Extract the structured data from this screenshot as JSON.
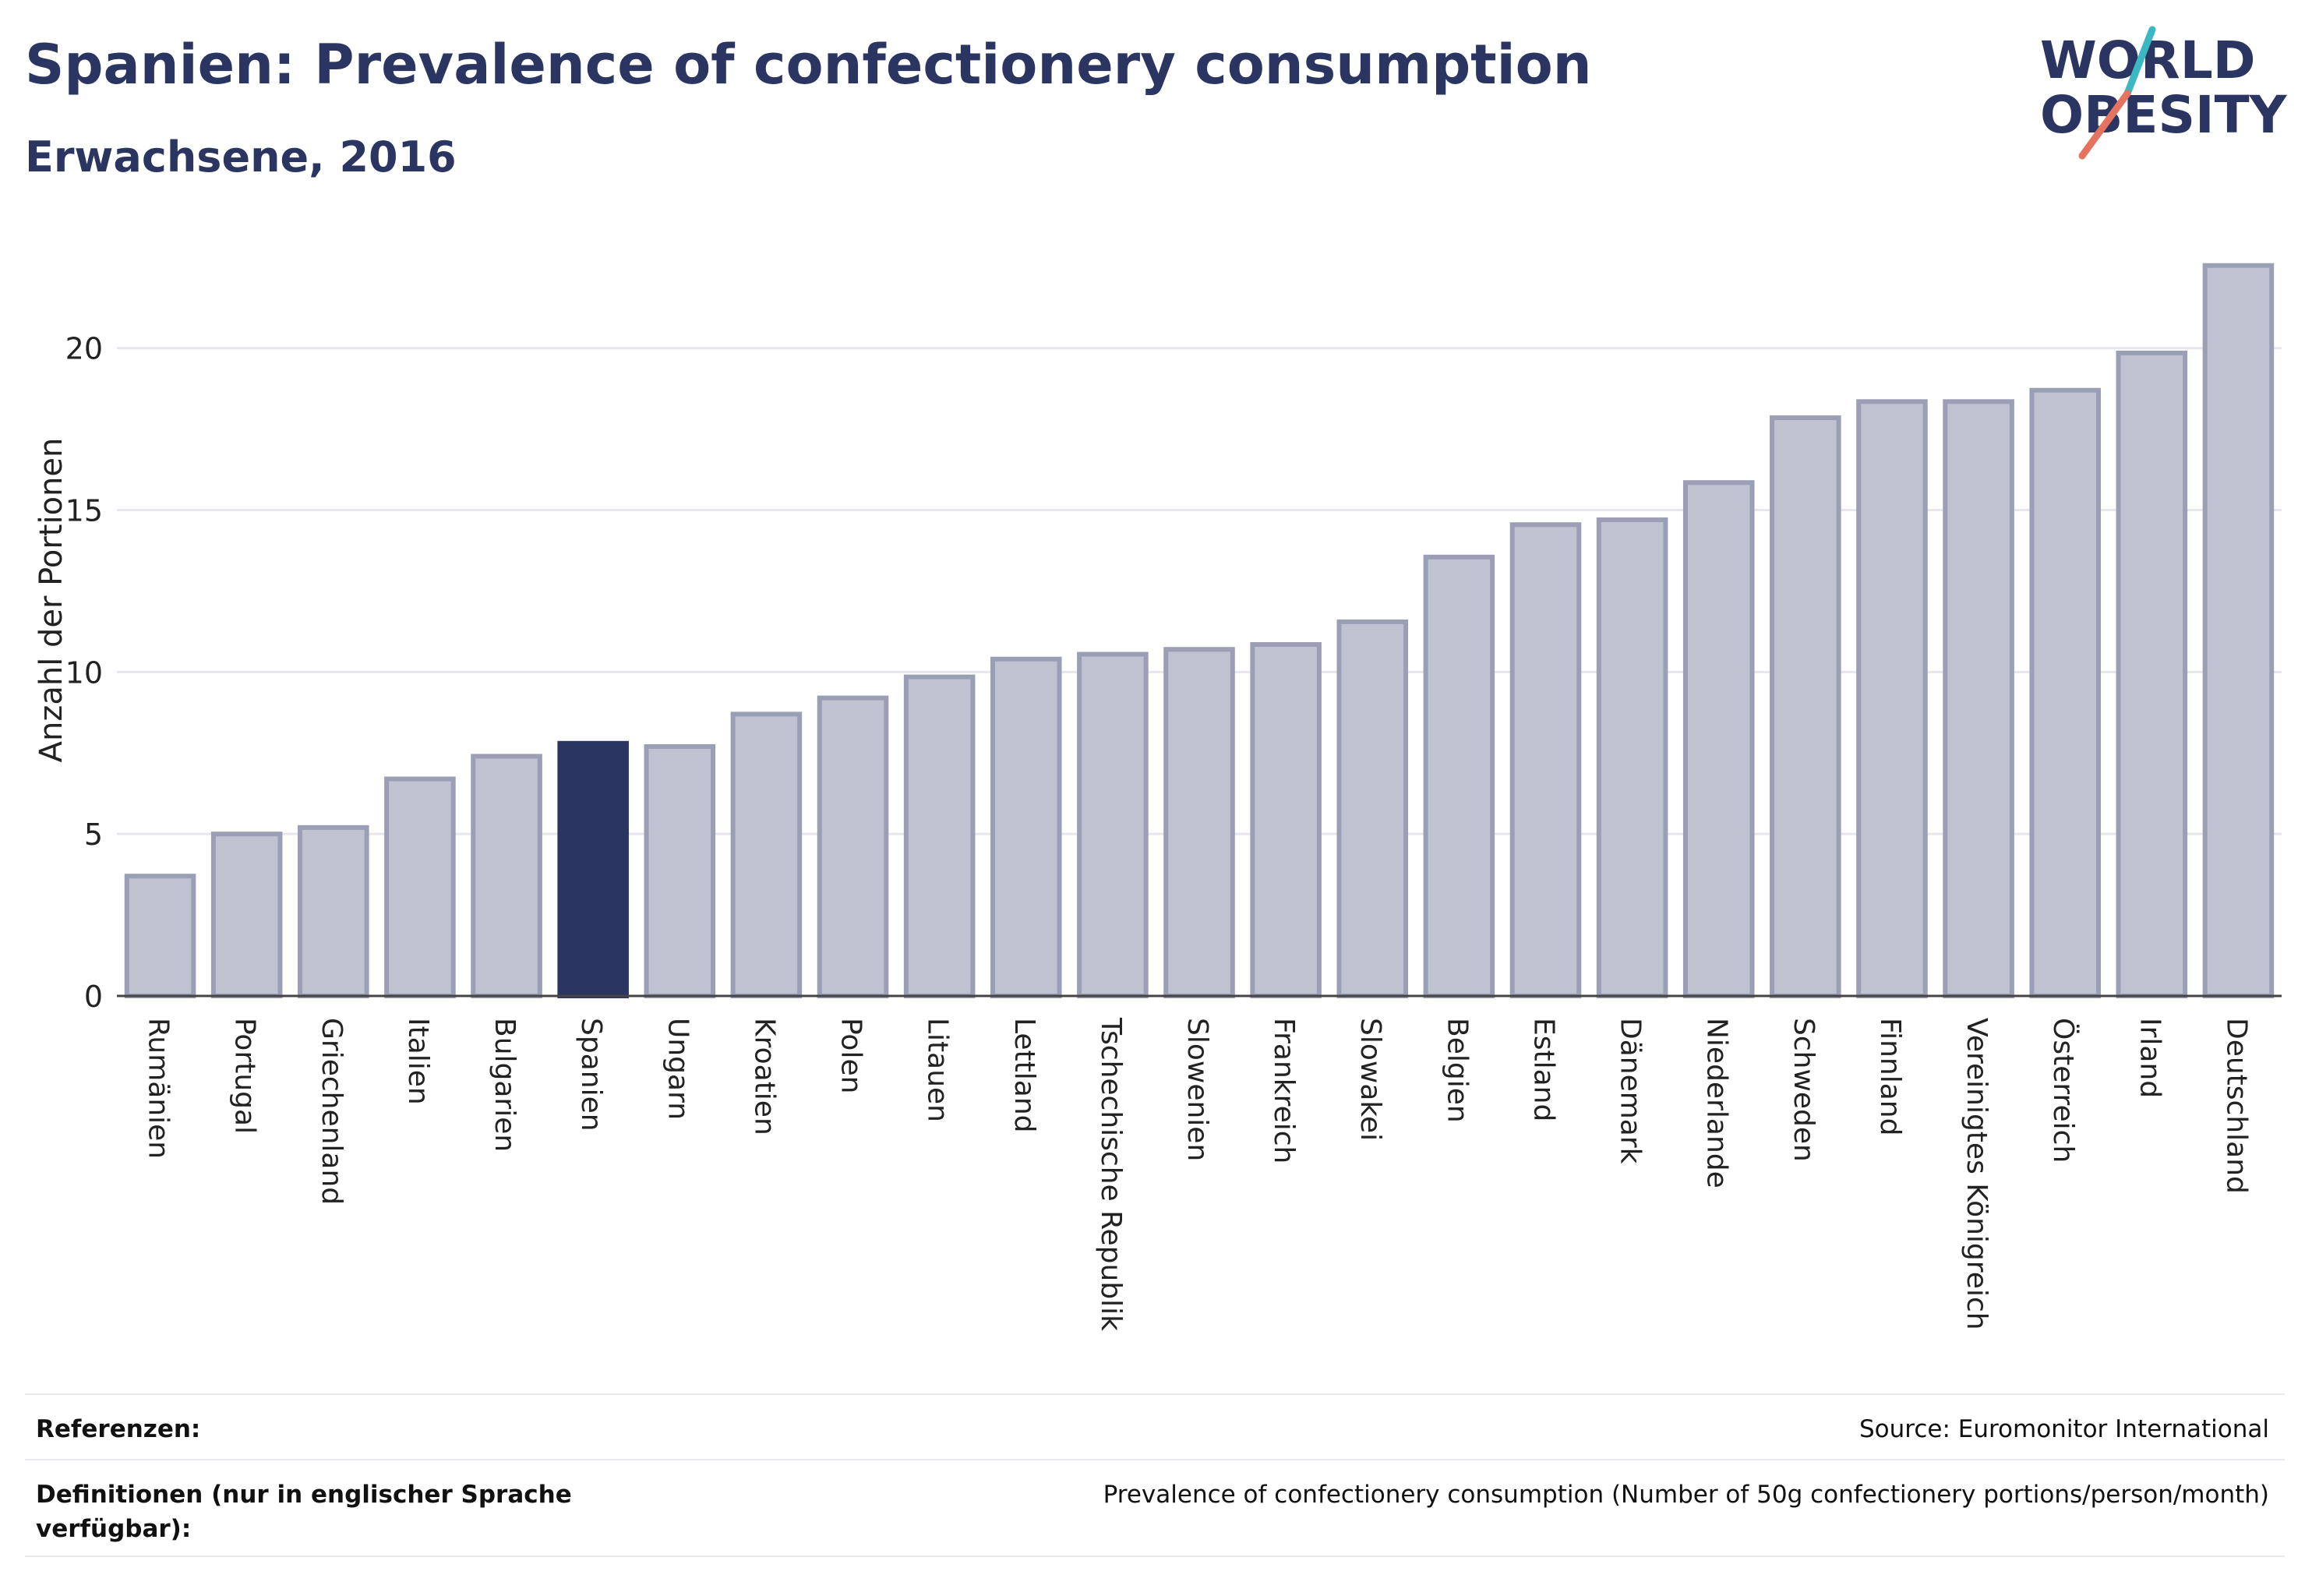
{
  "header": {
    "title": "Spanien: Prevalence of confectionery consumption",
    "subtitle": "Erwachsene, 2016"
  },
  "logo": {
    "line1": "WORLD",
    "line2": "OBESITY",
    "colors": {
      "text": "#2b3561",
      "teal": "#3bb8c3",
      "coral": "#e5735f"
    }
  },
  "chart_data": {
    "type": "bar",
    "ylabel": "Anzahl der Portionen",
    "xlabel": "",
    "ylim": [
      0,
      23
    ],
    "yticks": [
      0,
      5,
      10,
      15,
      20
    ],
    "grid": true,
    "highlight": "Spanien",
    "colors": {
      "bar": "#bfc2d0",
      "bar_border": "#9a9fb6",
      "highlight": "#2b3561"
    },
    "categories": [
      "Rumänien",
      "Portugal",
      "Griechenland",
      "Italien",
      "Bulgarien",
      "Spanien",
      "Ungarn",
      "Kroatien",
      "Polen",
      "Litauen",
      "Lettland",
      "Tschechische Republik",
      "Slowenien",
      "Frankreich",
      "Slowakei",
      "Belgien",
      "Estland",
      "Dänemark",
      "Niederlande",
      "Schweden",
      "Finnland",
      "Vereinigtes Königreich",
      "Österreich",
      "Irland",
      "Deutschland"
    ],
    "values": [
      3.7,
      5.0,
      5.2,
      6.7,
      7.4,
      7.8,
      7.7,
      8.7,
      9.2,
      9.85,
      10.4,
      10.55,
      10.7,
      10.85,
      11.55,
      13.55,
      14.55,
      14.7,
      15.85,
      17.85,
      18.35,
      18.35,
      18.7,
      19.85,
      22.55
    ]
  },
  "footer": {
    "references_label": "Referenzen:",
    "references_value": "Source: Euromonitor International",
    "definitions_label": "Definitionen (nur in englischer Sprache verfügbar):",
    "definitions_value": "Prevalence of confectionery consumption (Number of 50g confectionery portions/person/month)"
  }
}
